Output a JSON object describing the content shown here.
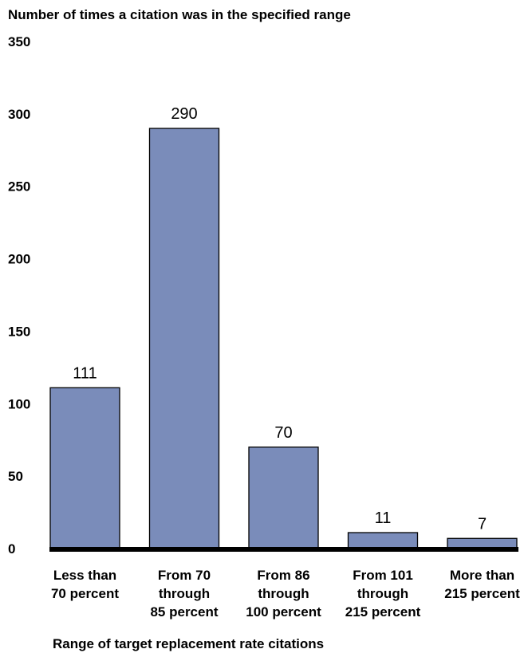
{
  "chart_data": {
    "type": "bar",
    "ylabel": "Number of times a citation was in the specified range",
    "xlabel": "Range of target replacement rate citations",
    "categories": [
      [
        "Less than",
        "70 percent"
      ],
      [
        "From 70",
        "through",
        "85 percent"
      ],
      [
        "From 86",
        "through",
        "100 percent"
      ],
      [
        "From 101",
        "through",
        "215 percent"
      ],
      [
        "More than",
        "215 percent"
      ]
    ],
    "values": [
      111,
      290,
      70,
      11,
      7
    ],
    "data_labels": [
      "111",
      "290",
      "70",
      "11",
      "7"
    ],
    "ylim": [
      0,
      350
    ],
    "yticks": [
      0,
      50,
      100,
      150,
      200,
      250,
      300,
      350
    ],
    "grid": false,
    "legend": "none",
    "bar_color": "#7a8cba",
    "bar_edge_color": "#000000",
    "baseline_color": "#000000"
  }
}
